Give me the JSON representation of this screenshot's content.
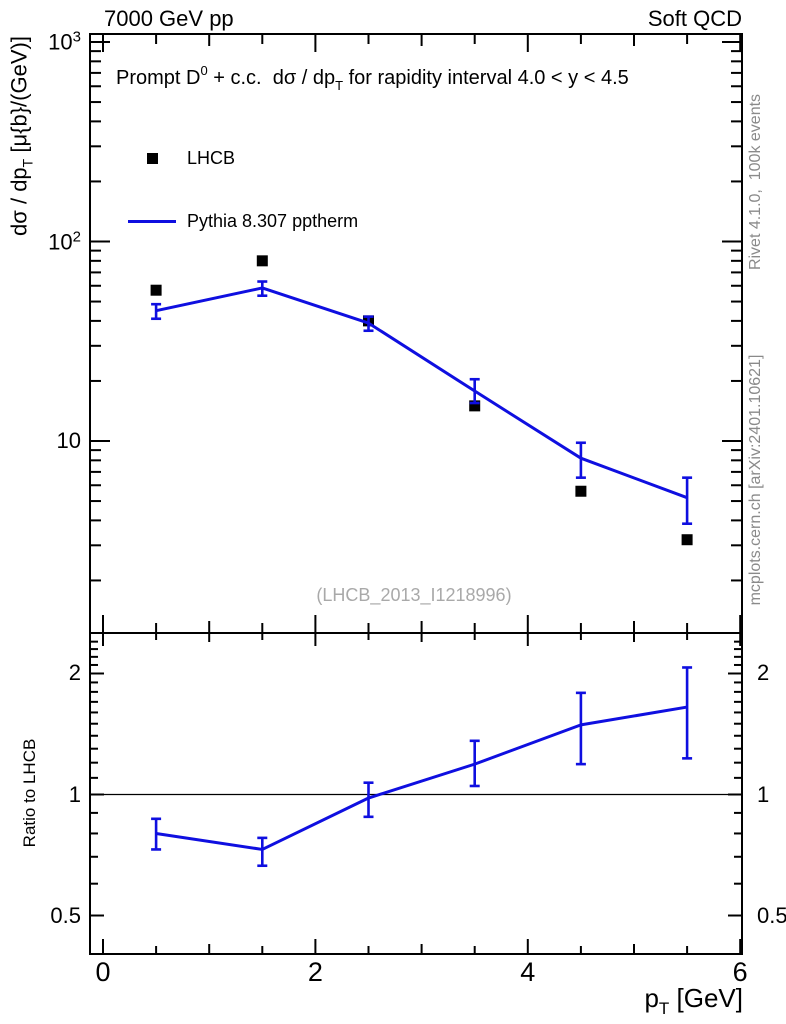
{
  "header": {
    "left": "7000 GeV pp",
    "right": "Soft QCD"
  },
  "main_title": {
    "prefix": "Prompt D",
    "sup": "0",
    "mid": " + c.c.  dσ / dp",
    "sub": "T",
    "suffix": " for rapidity interval 4.0 < y < 4.5"
  },
  "legend": {
    "items": [
      {
        "label": "LHCB",
        "marker": "black-filled-square"
      },
      {
        "label": "Pythia 8.307 pptherm",
        "marker": "blue-line"
      }
    ]
  },
  "watermark": "(LHCB_2013_I1218996)",
  "side_notes": {
    "top_right": "Rivet 4.1.0,  100k events",
    "bottom_right": "mcplots.cern.ch [arXiv:2401.10621]"
  },
  "axes": {
    "y_main_label": {
      "prefix": "dσ / dp",
      "sub": "T",
      "suffix": " [μ{b}/(GeV)]"
    },
    "y_ratio_label": "Ratio to LHCB",
    "x_label": {
      "prefix": "p",
      "sub": "T",
      "suffix": " [GeV]"
    },
    "x_ticks": [
      {
        "value": 0,
        "label": "0"
      },
      {
        "value": 2,
        "label": "2"
      },
      {
        "value": 4,
        "label": "4"
      },
      {
        "value": 6,
        "label": "6"
      }
    ],
    "y_main_ticks": [
      {
        "value": 1000,
        "base": "10",
        "exp": "3"
      },
      {
        "value": 100,
        "base": "10",
        "exp": "2"
      },
      {
        "value": 10,
        "base": "10",
        "exp": ""
      }
    ],
    "y_ratio_ticks": [
      {
        "value": 2,
        "label": "2"
      },
      {
        "value": 1,
        "label": "1"
      },
      {
        "value": 0.5,
        "label": "0.5"
      }
    ]
  },
  "colors": {
    "mc_line": "#0f0fe0",
    "data_marker": "#000000",
    "frame": "#000000",
    "side_note_grey": "#8a8a8a",
    "watermark_grey": "#a9a9a9"
  },
  "chart_data": [
    {
      "type": "line",
      "panel": "main",
      "title": "Prompt D0 + c.c. dσ/dpT for rapidity interval 4.0 < y < 4.5",
      "xlabel": "pT [GeV]",
      "ylabel": "dσ / dpT [μ{b}/(GeV)]",
      "yscale": "log",
      "xlim": [
        -0.12,
        6.02
      ],
      "ylim": [
        1.1,
        1090
      ],
      "grid": false,
      "legend_position": "top-left",
      "x": [
        0.5,
        1.5,
        2.5,
        3.5,
        4.5,
        5.5
      ],
      "series": [
        {
          "name": "LHCB",
          "style": "scatter",
          "marker": "filled-square",
          "color": "#000000",
          "values": [
            57,
            80,
            40,
            15,
            5.6,
            3.2
          ]
        },
        {
          "name": "Pythia 8.307 pptherm",
          "style": "line-with-errors",
          "color": "#0f0fe0",
          "values": [
            45,
            58.5,
            39,
            17.8,
            8.2,
            5.2
          ],
          "err_hi": [
            48.5,
            63,
            42,
            20.4,
            9.8,
            6.55
          ],
          "err_lo": [
            41,
            53.5,
            35.7,
            15.5,
            6.55,
            3.85
          ]
        }
      ]
    },
    {
      "type": "line",
      "panel": "ratio",
      "ylabel": "Ratio to LHCB",
      "yscale": "log",
      "xlim": [
        -0.12,
        6.02
      ],
      "ylim": [
        0.4,
        2.52
      ],
      "reference_line_y": 1,
      "x": [
        0.5,
        1.5,
        2.5,
        3.5,
        4.5,
        5.5
      ],
      "series": [
        {
          "name": "Pythia 8.307 pptherm / LHCB",
          "style": "line-with-errors",
          "color": "#0f0fe0",
          "values": [
            0.8,
            0.73,
            0.98,
            1.19,
            1.49,
            1.65
          ],
          "err_hi": [
            0.87,
            0.78,
            1.07,
            1.36,
            1.79,
            2.07
          ],
          "err_lo": [
            0.73,
            0.665,
            0.88,
            1.05,
            1.19,
            1.23
          ]
        }
      ]
    }
  ]
}
